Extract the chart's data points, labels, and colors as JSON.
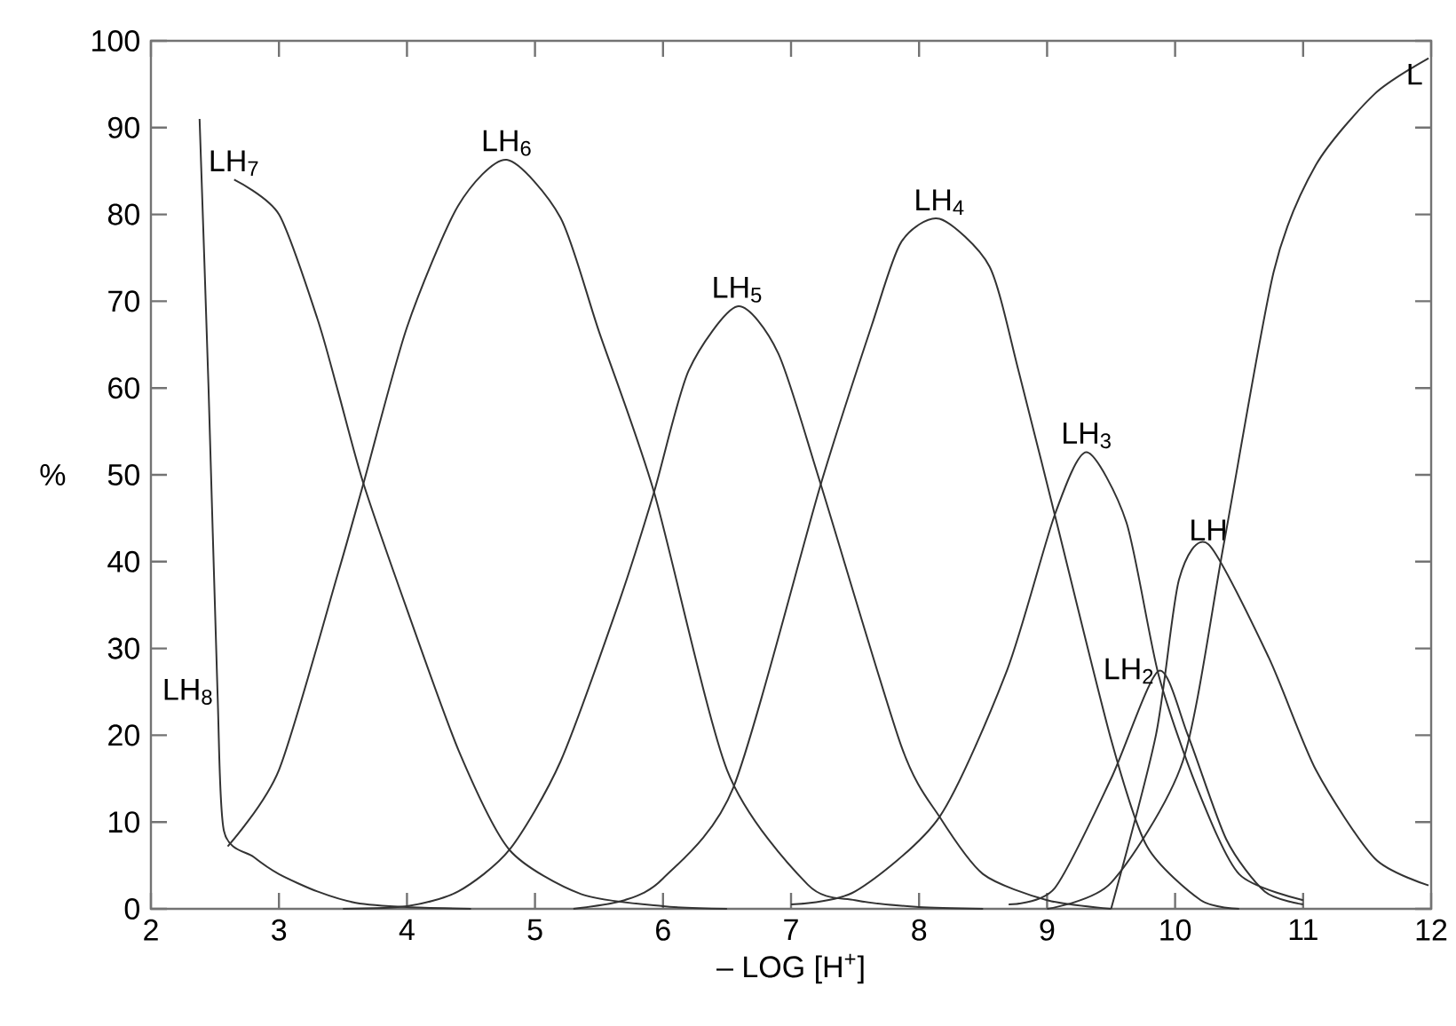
{
  "chart_data": {
    "type": "line",
    "xlabel": "– LOG [H$^{+}$]",
    "ylabel": "%",
    "xlim": [
      2,
      12
    ],
    "ylim": [
      0,
      100
    ],
    "xticks": [
      2,
      3,
      4,
      5,
      6,
      7,
      8,
      9,
      10,
      11,
      12
    ],
    "yticks": [
      0,
      10,
      20,
      30,
      40,
      50,
      60,
      70,
      80,
      90,
      100
    ],
    "grid": false,
    "legend": false,
    "line_style": "solid",
    "series": [
      {
        "name": "LH$_{8}$",
        "color": "#333333",
        "x": [
          2.38,
          2.45,
          2.52,
          2.57,
          2.8,
          3.0,
          3.3,
          3.6,
          4.0,
          4.5
        ],
        "values": [
          91,
          60,
          25,
          9,
          6,
          4,
          2,
          0.7,
          0.2,
          0
        ]
      },
      {
        "name": "LH$_{7}$",
        "color": "#333333",
        "x": [
          2.65,
          3.0,
          3.3,
          3.46,
          3.66,
          4.0,
          4.41,
          4.8,
          5.36,
          6.0,
          6.5
        ],
        "values": [
          84,
          80,
          68,
          59.7,
          49,
          34.5,
          18,
          6.8,
          1.7,
          0.3,
          0
        ]
      },
      {
        "name": "LH$_{6}$",
        "color": "#333333",
        "x": [
          2.6,
          3.0,
          3.46,
          3.66,
          4.0,
          4.4,
          4.78,
          5.2,
          5.5,
          5.93,
          6.5,
          7.13,
          7.5,
          8.0,
          8.5
        ],
        "values": [
          7.2,
          16,
          38.6,
          49,
          67,
          81,
          86.3,
          79.6,
          66.5,
          48,
          16,
          2.8,
          1,
          0.2,
          0
        ]
      },
      {
        "name": "LH$_{5}$",
        "color": "#333333",
        "x": [
          3.5,
          4.0,
          4.4,
          4.8,
          5.2,
          5.66,
          5.93,
          6.2,
          6.58,
          6.9,
          7.23,
          7.86,
          8.16,
          8.5,
          9.0,
          9.5
        ],
        "values": [
          0,
          0.3,
          2,
          6.8,
          17,
          35.5,
          48,
          62,
          69.4,
          64,
          49,
          18.8,
          10.6,
          4,
          1,
          0
        ]
      },
      {
        "name": "LH$_{4}$",
        "color": "#333333",
        "x": [
          5.3,
          5.7,
          6.0,
          6.55,
          7.23,
          7.63,
          7.86,
          8.16,
          8.55,
          8.78,
          9.06,
          9.5,
          9.78,
          10.2,
          10.5
        ],
        "values": [
          0,
          1,
          3.5,
          14,
          48.8,
          67.2,
          76.8,
          79.5,
          74,
          61.8,
          45.4,
          19.5,
          7.2,
          1,
          0
        ]
      },
      {
        "name": "LH$_{3}$",
        "color": "#333333",
        "x": [
          7.0,
          7.5,
          8.16,
          8.69,
          9.06,
          9.31,
          9.62,
          9.87,
          10.17,
          10.5,
          11.0
        ],
        "values": [
          0.5,
          2,
          10.6,
          27.6,
          45.4,
          52.6,
          44.5,
          27,
          14,
          4,
          1
        ]
      },
      {
        "name": "LH$_{2}$",
        "color": "#333333",
        "x": [
          8.7,
          9.06,
          9.5,
          9.87,
          10.1,
          10.4,
          10.7,
          11.0
        ],
        "values": [
          0.5,
          2.4,
          15,
          27.4,
          20,
          8,
          2,
          0.5
        ]
      },
      {
        "name": "LH",
        "color": "#333333",
        "x": [
          9.5,
          9.85,
          10.03,
          10.26,
          10.73,
          11.1,
          11.56,
          11.98
        ],
        "values": [
          0,
          20,
          37.9,
          42,
          29,
          16,
          5.8,
          2.7
        ]
      },
      {
        "name": "L",
        "color": "#333333",
        "x": [
          9.0,
          9.5,
          10.06,
          10.38,
          10.77,
          11.1,
          11.56,
          11.98
        ],
        "values": [
          0,
          3,
          17,
          42,
          73.4,
          85.7,
          93.9,
          98
        ]
      }
    ]
  }
}
